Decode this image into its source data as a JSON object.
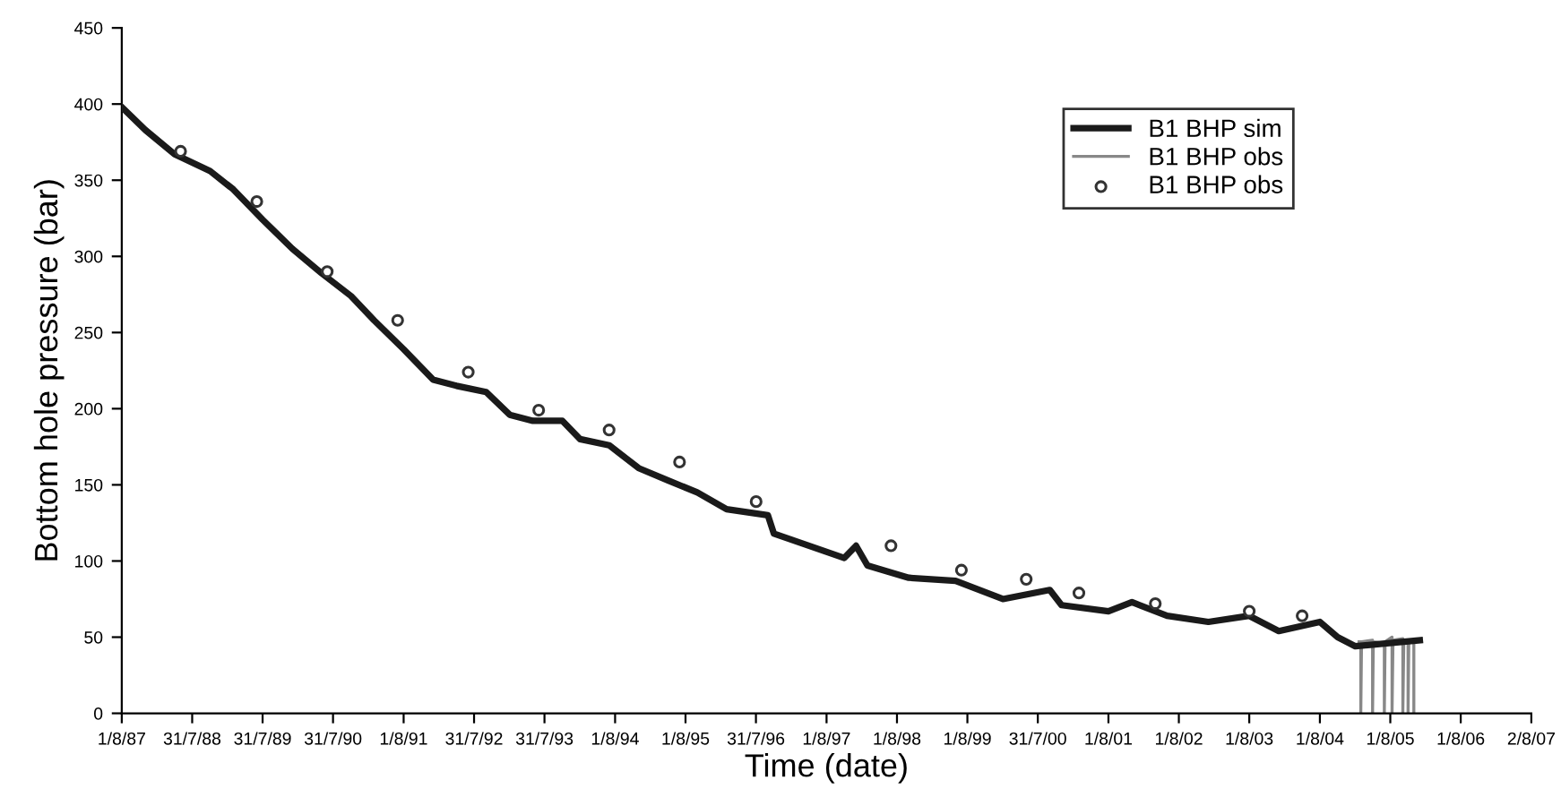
{
  "chart_data": {
    "type": "line",
    "xlabel": "Time (date)",
    "ylabel": "Bottom hole pressure (bar)",
    "xlim": [
      "1987-08-01",
      "2007-08-02"
    ],
    "ylim": [
      0,
      450
    ],
    "yticks": [
      0,
      50,
      100,
      150,
      200,
      250,
      300,
      350,
      400,
      450
    ],
    "xticks": [
      {
        "value": "1987-08-01",
        "label": "1/8/87"
      },
      {
        "value": "1988-07-31",
        "label": "31/7/88"
      },
      {
        "value": "1989-07-31",
        "label": "31/7/89"
      },
      {
        "value": "1990-07-31",
        "label": "31/7/90"
      },
      {
        "value": "1991-08-01",
        "label": "1/8/91"
      },
      {
        "value": "1992-07-31",
        "label": "31/7/92"
      },
      {
        "value": "1993-07-31",
        "label": "31/7/93"
      },
      {
        "value": "1994-08-01",
        "label": "1/8/94"
      },
      {
        "value": "1995-08-01",
        "label": "1/8/95"
      },
      {
        "value": "1996-07-31",
        "label": "31/7/96"
      },
      {
        "value": "1997-08-01",
        "label": "1/8/97"
      },
      {
        "value": "1998-08-01",
        "label": "1/8/98"
      },
      {
        "value": "1999-08-01",
        "label": "1/8/99"
      },
      {
        "value": "2000-07-31",
        "label": "31/7/00"
      },
      {
        "value": "2001-08-01",
        "label": "1/8/01"
      },
      {
        "value": "2002-08-01",
        "label": "1/8/02"
      },
      {
        "value": "2003-08-01",
        "label": "1/8/03"
      },
      {
        "value": "2004-08-01",
        "label": "1/8/04"
      },
      {
        "value": "2005-08-01",
        "label": "1/8/05"
      },
      {
        "value": "2006-08-01",
        "label": "1/8/06"
      },
      {
        "value": "2007-08-02",
        "label": "2/8/07"
      }
    ],
    "grid": false,
    "legend": "top right",
    "series": [
      {
        "name": "B1 BHP sim",
        "color": "#1a1a1a",
        "marker": "none",
        "line_style": "solid",
        "x": [
          "1987-08",
          "1987-12",
          "1988-05",
          "1988-11",
          "1989-03",
          "1989-08",
          "1990-01",
          "1990-06",
          "1990-11",
          "1991-03",
          "1991-08",
          "1992-01",
          "1992-05",
          "1992-10",
          "1993-02",
          "1993-06",
          "1993-11",
          "1994-02",
          "1994-07",
          "1994-12",
          "1995-05",
          "1995-10",
          "1996-03",
          "1996-10",
          "1996-11",
          "1997-05",
          "1997-11",
          "1998-01",
          "1998-03",
          "1998-10",
          "1999-06",
          "2000-02",
          "2000-10",
          "2000-12",
          "2001-08",
          "2001-12",
          "2002-06",
          "2003-01",
          "2003-08",
          "2004-01",
          "2004-08",
          "2004-11",
          "2005-02",
          "2006-01"
        ],
        "values": [
          398,
          383,
          367,
          356,
          344,
          324,
          305,
          289,
          274,
          258,
          239,
          219,
          215,
          211,
          196,
          192,
          192,
          180,
          176,
          161,
          153,
          145,
          134,
          130,
          118,
          110,
          102,
          110,
          97,
          89,
          87,
          75,
          81,
          71,
          67,
          73,
          64,
          60,
          64,
          54,
          60,
          50,
          44,
          48
        ]
      },
      {
        "name": "B1 BHP obs",
        "color": "#888888",
        "marker": "none",
        "line_style": "solid",
        "x": [
          "2005-02-20",
          "2005-03-01",
          "2005-03-01",
          "2005-03-05",
          "2005-05-01",
          "2005-05-01",
          "2005-05-05",
          "2005-07-01",
          "2005-07-01",
          "2005-07-05",
          "2005-08-10",
          "2005-08-10",
          "2005-08-15",
          "2005-10-05",
          "2005-10-05",
          "2005-10-10",
          "2005-11-01",
          "2005-11-01",
          "2005-11-05",
          "2005-12-01",
          "2005-12-01"
        ],
        "values": [
          47,
          47,
          0,
          47,
          48,
          0,
          47,
          46,
          0,
          47,
          50,
          0,
          48,
          49,
          0,
          48,
          48,
          0,
          48,
          47,
          0
        ]
      },
      {
        "name": "B1 BHP obs",
        "type": "scatter",
        "color": "#333333",
        "marker": "circle",
        "x": [
          "1988-06",
          "1989-07",
          "1990-07",
          "1991-07",
          "1992-07",
          "1993-07",
          "1994-07",
          "1995-07",
          "1996-08",
          "1998-07",
          "1999-07",
          "2000-06",
          "2001-03",
          "2002-04",
          "2003-08",
          "2004-05"
        ],
        "values": [
          369,
          336,
          290,
          258,
          224,
          199,
          186,
          165,
          139,
          110,
          94,
          88,
          79,
          72,
          67,
          64
        ]
      }
    ]
  }
}
